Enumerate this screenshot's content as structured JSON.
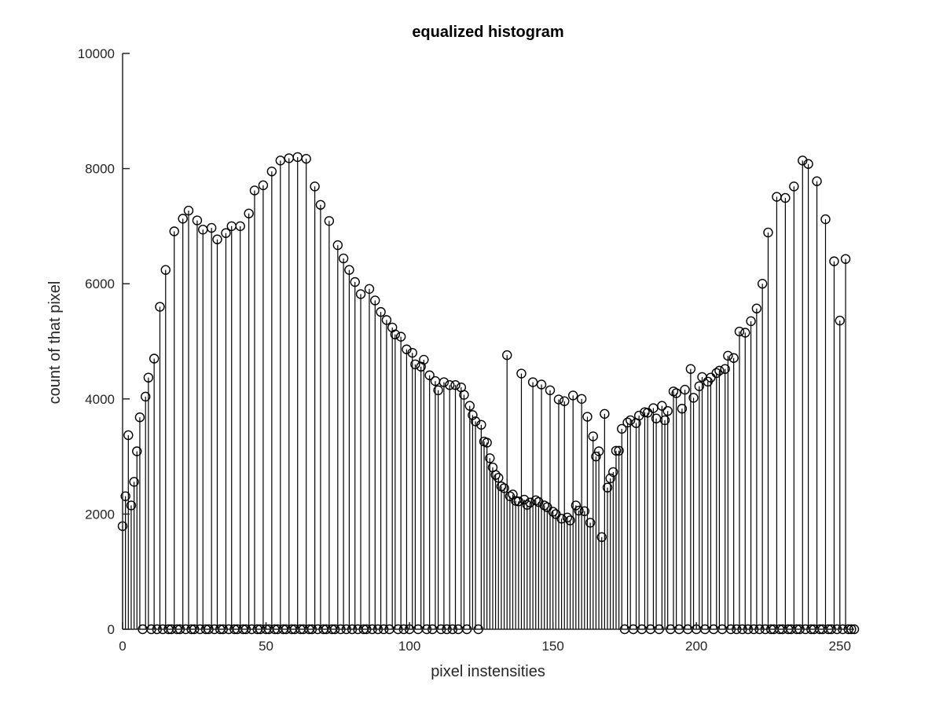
{
  "chart_data": {
    "type": "stem",
    "title": "equalized histogram",
    "xlabel": "pixel instensities",
    "ylabel": "count of that pixel",
    "xlim": [
      0,
      255
    ],
    "ylim": [
      0,
      10000
    ],
    "xticks": [
      0,
      50,
      100,
      150,
      200,
      250
    ],
    "yticks": [
      0,
      2000,
      4000,
      6000,
      8000,
      10000
    ],
    "xtick_labels": [
      "0",
      "50",
      "100",
      "150",
      "200",
      "250"
    ],
    "ytick_labels": [
      "0",
      "2000",
      "4000",
      "6000",
      "8000",
      "10000"
    ],
    "marker": "circle",
    "grid": false,
    "points": [
      [
        0,
        1790
      ],
      [
        1,
        2310
      ],
      [
        2,
        3370
      ],
      [
        3,
        2150
      ],
      [
        4,
        2560
      ],
      [
        5,
        3090
      ],
      [
        6,
        3680
      ],
      [
        7,
        0
      ],
      [
        8,
        4040
      ],
      [
        9,
        4370
      ],
      [
        10,
        0
      ],
      [
        11,
        4700
      ],
      [
        12,
        0
      ],
      [
        13,
        5600
      ],
      [
        14,
        0
      ],
      [
        15,
        6240
      ],
      [
        16,
        0
      ],
      [
        17,
        0
      ],
      [
        18,
        6910
      ],
      [
        19,
        0
      ],
      [
        20,
        0
      ],
      [
        21,
        7130
      ],
      [
        22,
        0
      ],
      [
        23,
        7270
      ],
      [
        24,
        0
      ],
      [
        25,
        0
      ],
      [
        26,
        7100
      ],
      [
        27,
        0
      ],
      [
        28,
        6940
      ],
      [
        29,
        0
      ],
      [
        30,
        0
      ],
      [
        31,
        6970
      ],
      [
        32,
        0
      ],
      [
        33,
        6770
      ],
      [
        34,
        0
      ],
      [
        35,
        0
      ],
      [
        36,
        6880
      ],
      [
        37,
        0
      ],
      [
        38,
        7000
      ],
      [
        39,
        0
      ],
      [
        40,
        0
      ],
      [
        41,
        7000
      ],
      [
        42,
        0
      ],
      [
        43,
        0
      ],
      [
        44,
        7220
      ],
      [
        45,
        0
      ],
      [
        46,
        7620
      ],
      [
        47,
        0
      ],
      [
        48,
        0
      ],
      [
        49,
        7710
      ],
      [
        50,
        0
      ],
      [
        51,
        0
      ],
      [
        52,
        7950
      ],
      [
        53,
        0
      ],
      [
        54,
        0
      ],
      [
        55,
        8140
      ],
      [
        56,
        0
      ],
      [
        57,
        0
      ],
      [
        58,
        8180
      ],
      [
        59,
        0
      ],
      [
        60,
        0
      ],
      [
        61,
        8200
      ],
      [
        62,
        0
      ],
      [
        63,
        0
      ],
      [
        64,
        8170
      ],
      [
        65,
        0
      ],
      [
        66,
        0
      ],
      [
        67,
        7690
      ],
      [
        68,
        0
      ],
      [
        69,
        7370
      ],
      [
        70,
        0
      ],
      [
        71,
        0
      ],
      [
        72,
        7090
      ],
      [
        73,
        0
      ],
      [
        74,
        0
      ],
      [
        75,
        6670
      ],
      [
        76,
        0
      ],
      [
        77,
        6440
      ],
      [
        78,
        0
      ],
      [
        79,
        6240
      ],
      [
        80,
        0
      ],
      [
        81,
        6030
      ],
      [
        82,
        0
      ],
      [
        83,
        5820
      ],
      [
        84,
        0
      ],
      [
        85,
        0
      ],
      [
        86,
        5910
      ],
      [
        87,
        0
      ],
      [
        88,
        5710
      ],
      [
        89,
        0
      ],
      [
        90,
        5510
      ],
      [
        91,
        0
      ],
      [
        92,
        5370
      ],
      [
        93,
        0
      ],
      [
        94,
        5240
      ],
      [
        95,
        5120
      ],
      [
        96,
        0
      ],
      [
        97,
        5080
      ],
      [
        98,
        0
      ],
      [
        99,
        4860
      ],
      [
        100,
        0
      ],
      [
        101,
        4800
      ],
      [
        102,
        4600
      ],
      [
        103,
        0
      ],
      [
        104,
        4560
      ],
      [
        105,
        4680
      ],
      [
        106,
        0
      ],
      [
        107,
        4410
      ],
      [
        108,
        0
      ],
      [
        109,
        4310
      ],
      [
        110,
        4150
      ],
      [
        111,
        0
      ],
      [
        112,
        4290
      ],
      [
        113,
        0
      ],
      [
        114,
        4240
      ],
      [
        115,
        0
      ],
      [
        116,
        4240
      ],
      [
        117,
        0
      ],
      [
        118,
        4200
      ],
      [
        119,
        4070
      ],
      [
        120,
        0
      ],
      [
        121,
        3880
      ],
      [
        122,
        3720
      ],
      [
        123,
        3610
      ],
      [
        124,
        0
      ],
      [
        125,
        3550
      ],
      [
        126,
        3260
      ],
      [
        127,
        3240
      ],
      [
        128,
        2970
      ],
      [
        129,
        2810
      ],
      [
        130,
        2680
      ],
      [
        131,
        2630
      ],
      [
        132,
        2480
      ],
      [
        133,
        2450
      ],
      [
        134,
        4760
      ],
      [
        135,
        2310
      ],
      [
        136,
        2340
      ],
      [
        137,
        2230
      ],
      [
        138,
        2220
      ],
      [
        139,
        4440
      ],
      [
        140,
        2250
      ],
      [
        141,
        2160
      ],
      [
        142,
        2200
      ],
      [
        143,
        4290
      ],
      [
        144,
        2240
      ],
      [
        145,
        2210
      ],
      [
        146,
        4250
      ],
      [
        147,
        2150
      ],
      [
        148,
        2120
      ],
      [
        149,
        4150
      ],
      [
        150,
        2040
      ],
      [
        151,
        2000
      ],
      [
        152,
        3990
      ],
      [
        153,
        1920
      ],
      [
        154,
        3960
      ],
      [
        155,
        1940
      ],
      [
        156,
        1890
      ],
      [
        157,
        4060
      ],
      [
        158,
        2150
      ],
      [
        159,
        2060
      ],
      [
        160,
        4000
      ],
      [
        161,
        2050
      ],
      [
        162,
        3690
      ],
      [
        163,
        1850
      ],
      [
        164,
        3350
      ],
      [
        165,
        3000
      ],
      [
        166,
        3090
      ],
      [
        167,
        1600
      ],
      [
        168,
        3740
      ],
      [
        169,
        2460
      ],
      [
        170,
        2620
      ],
      [
        171,
        2730
      ],
      [
        172,
        3100
      ],
      [
        173,
        3100
      ],
      [
        174,
        3480
      ],
      [
        175,
        0
      ],
      [
        176,
        3590
      ],
      [
        177,
        3630
      ],
      [
        178,
        0
      ],
      [
        179,
        3580
      ],
      [
        180,
        3710
      ],
      [
        181,
        0
      ],
      [
        182,
        3770
      ],
      [
        183,
        3760
      ],
      [
        184,
        0
      ],
      [
        185,
        3840
      ],
      [
        186,
        3660
      ],
      [
        187,
        0
      ],
      [
        188,
        3880
      ],
      [
        189,
        3630
      ],
      [
        190,
        3790
      ],
      [
        191,
        0
      ],
      [
        192,
        4130
      ],
      [
        193,
        4100
      ],
      [
        194,
        0
      ],
      [
        195,
        3830
      ],
      [
        196,
        4160
      ],
      [
        197,
        0
      ],
      [
        198,
        4520
      ],
      [
        199,
        4020
      ],
      [
        200,
        0
      ],
      [
        201,
        4220
      ],
      [
        202,
        4380
      ],
      [
        203,
        0
      ],
      [
        204,
        4300
      ],
      [
        205,
        4370
      ],
      [
        206,
        0
      ],
      [
        207,
        4450
      ],
      [
        208,
        4490
      ],
      [
        209,
        0
      ],
      [
        210,
        4520
      ],
      [
        211,
        4750
      ],
      [
        212,
        0
      ],
      [
        213,
        4710
      ],
      [
        214,
        0
      ],
      [
        215,
        5170
      ],
      [
        216,
        0
      ],
      [
        217,
        5150
      ],
      [
        218,
        0
      ],
      [
        219,
        5350
      ],
      [
        220,
        0
      ],
      [
        221,
        5570
      ],
      [
        222,
        0
      ],
      [
        223,
        6000
      ],
      [
        224,
        0
      ],
      [
        225,
        6890
      ],
      [
        226,
        0
      ],
      [
        227,
        0
      ],
      [
        228,
        7510
      ],
      [
        229,
        0
      ],
      [
        230,
        0
      ],
      [
        231,
        7490
      ],
      [
        232,
        0
      ],
      [
        233,
        0
      ],
      [
        234,
        7690
      ],
      [
        235,
        0
      ],
      [
        236,
        0
      ],
      [
        237,
        8140
      ],
      [
        238,
        0
      ],
      [
        239,
        8080
      ],
      [
        240,
        0
      ],
      [
        241,
        0
      ],
      [
        242,
        7780
      ],
      [
        243,
        0
      ],
      [
        244,
        0
      ],
      [
        245,
        7120
      ],
      [
        246,
        0
      ],
      [
        247,
        0
      ],
      [
        248,
        6390
      ],
      [
        249,
        0
      ],
      [
        250,
        5360
      ],
      [
        251,
        0
      ],
      [
        252,
        6430
      ],
      [
        253,
        0
      ],
      [
        254,
        0
      ],
      [
        255,
        0
      ]
    ]
  }
}
